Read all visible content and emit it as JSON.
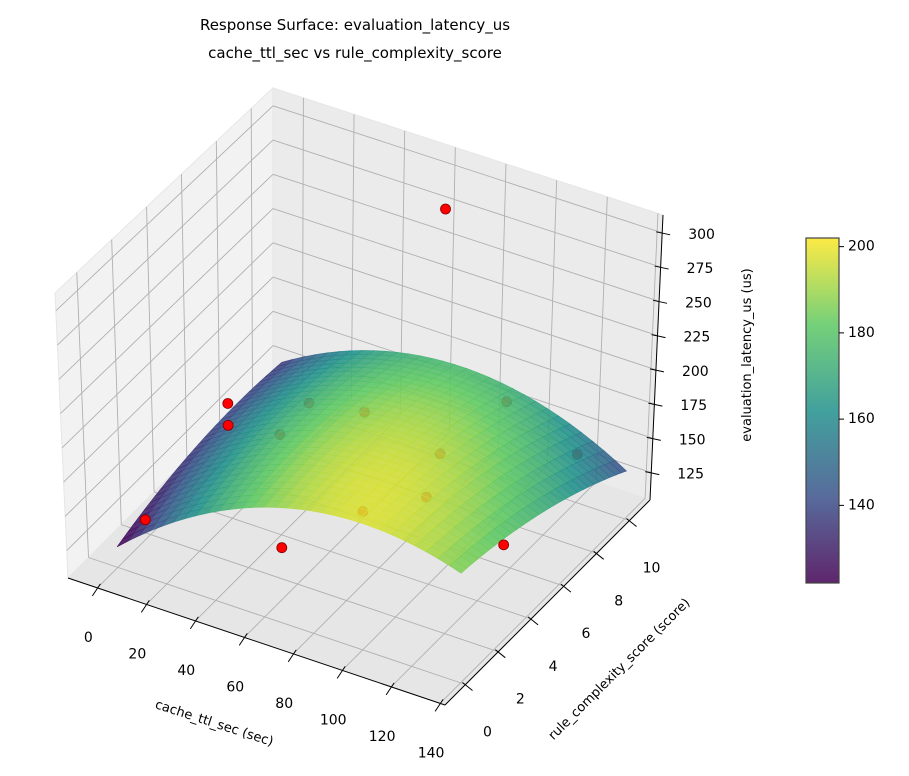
{
  "chart_data": {
    "type": "surface3d",
    "title": "Response Surface: evaluation_latency_us",
    "subtitle": "cache_ttl_sec vs rule_complexity_score",
    "xlabel": "cache_ttl_sec (sec)",
    "ylabel": "rule_complexity_score (score)",
    "zlabel": "evaluation_latency_us (us)",
    "xlim": [
      -12,
      142
    ],
    "ylim": [
      -1.25,
      11.25
    ],
    "zlim": [
      105,
      313
    ],
    "xticks": [
      "0",
      "20",
      "40",
      "60",
      "80",
      "100",
      "120",
      "140"
    ],
    "yticks": [
      "0",
      "2",
      "4",
      "6",
      "8",
      "10"
    ],
    "zticks": [
      "125",
      "150",
      "175",
      "200",
      "225",
      "250",
      "275",
      "300"
    ],
    "surface": {
      "colormap": "viridis",
      "x_range": [
        0,
        140
      ],
      "y_range": [
        0,
        10
      ],
      "model": "z = 120 + 1.548x + 4.72y - 0.00774x^2 - 0.322y^2 - 0.0429xy"
    },
    "colorbar": {
      "range": [
        122,
        202
      ],
      "ticks": [
        "140",
        "160",
        "180",
        "200"
      ]
    },
    "points": {
      "color": "#ff0000",
      "x": [
        12,
        12,
        12,
        67.5,
        33,
        24.5,
        47,
        80,
        65,
        91,
        99,
        137,
        91,
        120
      ],
      "y": [
        0,
        5,
        5,
        0,
        5,
        8,
        8,
        3,
        10,
        6,
        4,
        3,
        10,
        10
      ],
      "z": [
        147,
        172,
        156,
        160,
        162,
        144,
        151,
        158,
        286,
        171,
        168,
        168,
        161,
        140
      ]
    },
    "grid": true
  }
}
